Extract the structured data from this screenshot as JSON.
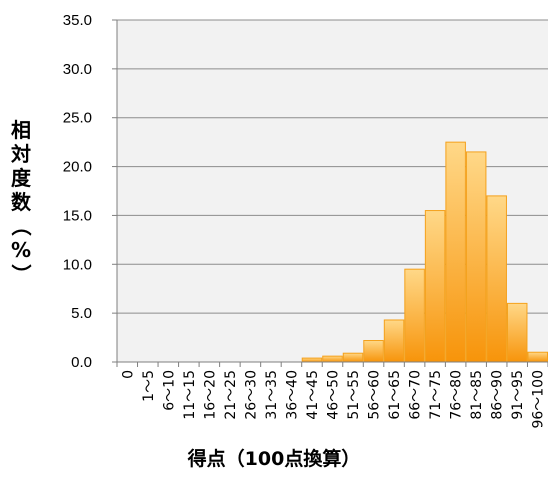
{
  "chart_data": {
    "type": "bar",
    "xlabel": "得点（100点換算）",
    "ylabel": "相対度数（%）",
    "ylim": [
      0,
      35
    ],
    "yticks": [
      "0.0",
      "5.0",
      "10.0",
      "15.0",
      "20.0",
      "25.0",
      "30.0",
      "35.0"
    ],
    "grid": true,
    "categories": [
      "0",
      "1～5",
      "6～10",
      "11～15",
      "16～20",
      "21～25",
      "26～30",
      "31～35",
      "36～40",
      "41～45",
      "46～50",
      "51～55",
      "56～60",
      "61～65",
      "66～70",
      "71～75",
      "76～80",
      "81～85",
      "86～90",
      "91～95",
      "96～100"
    ],
    "values": [
      0,
      0,
      0,
      0,
      0,
      0,
      0,
      0,
      0,
      0.4,
      0.6,
      0.9,
      2.2,
      4.3,
      9.5,
      15.5,
      22.5,
      21.5,
      17.0,
      6.0,
      1.0
    ],
    "colors": {
      "bar_top": "#ffd888",
      "bar_bottom": "#f7940a",
      "bar_border": "#f4a11c",
      "plot_bg": "#f2f2f2",
      "grid": "#8c8c8c"
    }
  }
}
